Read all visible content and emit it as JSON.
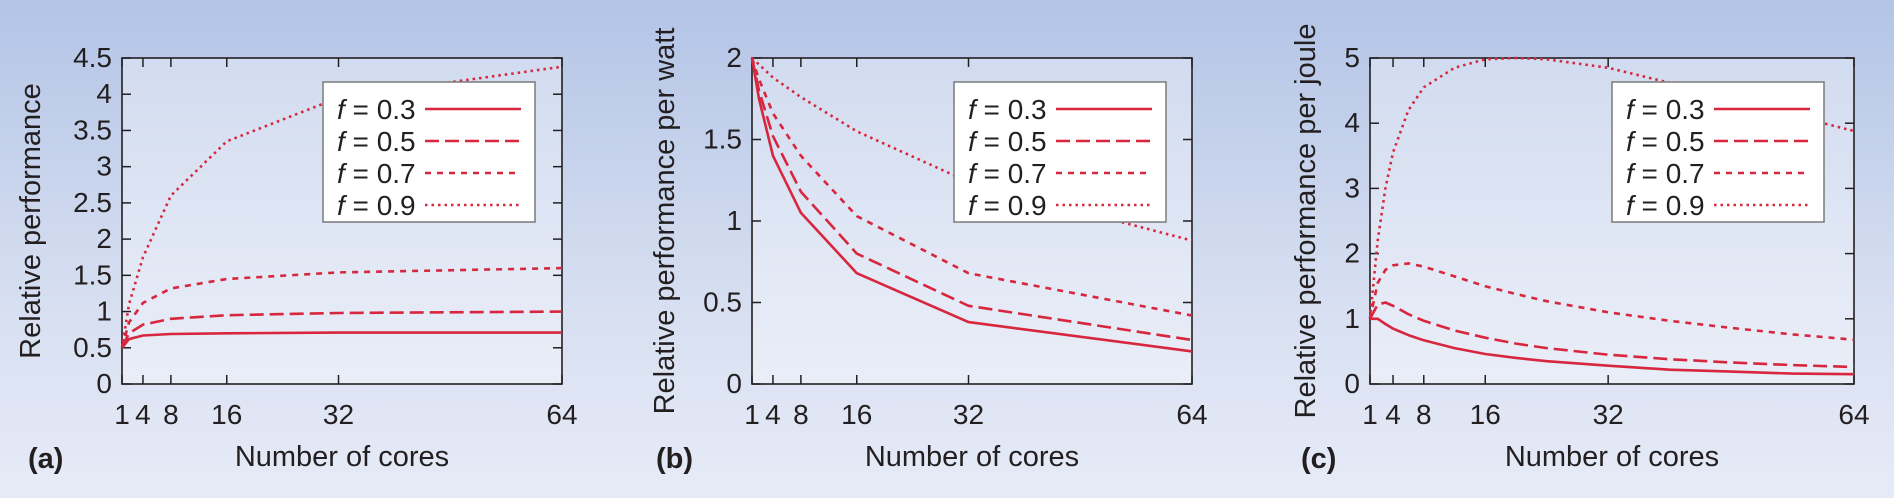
{
  "chart_data": [
    {
      "type": "line",
      "panel_label": "(a)",
      "xlabel": "Number of cores",
      "ylabel": "Relative performance",
      "xlim": [
        1,
        64
      ],
      "ylim": [
        0,
        4.5
      ],
      "x_ticks": [
        1,
        4,
        8,
        16,
        32,
        64
      ],
      "y_ticks": [
        0,
        0.5,
        1,
        1.5,
        2,
        2.5,
        3,
        3.5,
        4,
        4.5
      ],
      "legend_placement": "top-right",
      "grid": false,
      "x": [
        1,
        2,
        4,
        8,
        16,
        32,
        64
      ],
      "series": [
        {
          "name": "0.3",
          "dash": "solid",
          "values": [
            0.5,
            0.62,
            0.67,
            0.69,
            0.7,
            0.71,
            0.71
          ]
        },
        {
          "name": "0.5",
          "dash": "dashed",
          "values": [
            0.5,
            0.7,
            0.82,
            0.9,
            0.95,
            0.98,
            1.0
          ]
        },
        {
          "name": "0.7",
          "dash": "short",
          "values": [
            0.5,
            0.85,
            1.12,
            1.32,
            1.45,
            1.54,
            1.6
          ]
        },
        {
          "name": "0.9",
          "dash": "dotted",
          "values": [
            0.5,
            1.1,
            1.75,
            2.6,
            3.35,
            3.95,
            4.38
          ]
        }
      ]
    },
    {
      "type": "line",
      "panel_label": "(b)",
      "xlabel": "Number of cores",
      "ylabel": "Relative performance per watt",
      "xlim": [
        1,
        64
      ],
      "ylim": [
        0,
        2
      ],
      "x_ticks": [
        1,
        4,
        8,
        16,
        32,
        64
      ],
      "y_ticks": [
        0,
        0.5,
        1,
        1.5,
        2
      ],
      "legend_placement": "top-right",
      "grid": false,
      "x": [
        1,
        2,
        4,
        8,
        16,
        32,
        64
      ],
      "series": [
        {
          "name": "0.3",
          "dash": "solid",
          "values": [
            2.0,
            1.75,
            1.4,
            1.05,
            0.68,
            0.38,
            0.2
          ]
        },
        {
          "name": "0.5",
          "dash": "dashed",
          "values": [
            2.0,
            1.8,
            1.52,
            1.18,
            0.8,
            0.48,
            0.27
          ]
        },
        {
          "name": "0.7",
          "dash": "short",
          "values": [
            2.0,
            1.87,
            1.66,
            1.4,
            1.03,
            0.68,
            0.42
          ]
        },
        {
          "name": "0.9",
          "dash": "dotted",
          "values": [
            2.0,
            1.96,
            1.88,
            1.76,
            1.55,
            1.24,
            0.88
          ]
        }
      ]
    },
    {
      "type": "line",
      "panel_label": "(c)",
      "xlabel": "Number of cores",
      "ylabel": "Relative performance per joule",
      "xlim": [
        1,
        64
      ],
      "ylim": [
        0,
        5
      ],
      "x_ticks": [
        1,
        4,
        8,
        16,
        32,
        64
      ],
      "y_ticks": [
        0,
        1,
        2,
        3,
        4,
        5
      ],
      "legend_placement": "top-right",
      "grid": false,
      "x": [
        1,
        2,
        3,
        4,
        6,
        8,
        12,
        16,
        20,
        24,
        32,
        40,
        48,
        56,
        64
      ],
      "series": [
        {
          "name": "0.3",
          "dash": "solid",
          "values": [
            1.0,
            1.0,
            0.92,
            0.85,
            0.75,
            0.67,
            0.55,
            0.46,
            0.4,
            0.35,
            0.28,
            0.22,
            0.19,
            0.16,
            0.15
          ]
        },
        {
          "name": "0.5",
          "dash": "dashed",
          "values": [
            1.0,
            1.22,
            1.25,
            1.2,
            1.07,
            0.97,
            0.82,
            0.71,
            0.62,
            0.55,
            0.45,
            0.38,
            0.33,
            0.29,
            0.26
          ]
        },
        {
          "name": "0.7",
          "dash": "short",
          "values": [
            1.0,
            1.55,
            1.75,
            1.82,
            1.85,
            1.8,
            1.65,
            1.5,
            1.38,
            1.27,
            1.1,
            0.97,
            0.86,
            0.76,
            0.68
          ]
        },
        {
          "name": "0.9",
          "dash": "dotted",
          "values": [
            1.0,
            2.2,
            3.0,
            3.55,
            4.2,
            4.55,
            4.85,
            4.98,
            5.0,
            4.98,
            4.85,
            4.62,
            4.38,
            4.12,
            3.88
          ]
        }
      ]
    }
  ],
  "legend_variable": "f",
  "legend_equals": " = ",
  "colors": {
    "series_line": "#d7263d",
    "axis": "#231f20"
  }
}
